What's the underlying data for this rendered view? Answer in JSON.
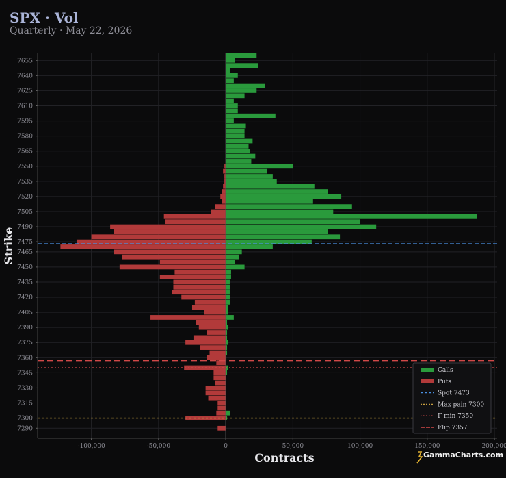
{
  "header": {
    "title": "SPX · Vol",
    "subtitle": "Quarterly · May 22, 2026"
  },
  "brand": "GammaCharts.com",
  "colors": {
    "calls": "#2a9a3c",
    "puts": "#b23a3a",
    "spot": "#4a90e2",
    "max_pain": "#c8a040",
    "gamma_min": "#d04848",
    "flip": "#d04848",
    "background": "#0b0b0c",
    "grid": "#222226"
  },
  "chart_data": {
    "type": "bar",
    "orientation": "horizontal",
    "xlabel": "Contracts",
    "ylabel": "Strike",
    "xlim": [
      -140000,
      202000
    ],
    "ylim": [
      7280,
      7662
    ],
    "x_ticks": [
      -100000,
      -50000,
      0,
      50000,
      100000,
      150000,
      200000
    ],
    "x_tick_labels": [
      "-100,000",
      "-50,000",
      "0",
      "50,000",
      "100,000",
      "150,000",
      "200,000"
    ],
    "y_ticks": [
      7290,
      7300,
      7315,
      7330,
      7345,
      7360,
      7375,
      7390,
      7405,
      7420,
      7435,
      7450,
      7465,
      7475,
      7490,
      7505,
      7520,
      7535,
      7550,
      7565,
      7580,
      7595,
      7610,
      7625,
      7640,
      7655
    ],
    "grid": true,
    "legend_position": "bottom-right",
    "series": [
      {
        "name": "Calls",
        "strikes": [
          7290,
          7300,
          7305,
          7310,
          7315,
          7320,
          7325,
          7330,
          7335,
          7340,
          7345,
          7350,
          7355,
          7360,
          7365,
          7370,
          7375,
          7380,
          7385,
          7390,
          7395,
          7400,
          7405,
          7410,
          7415,
          7420,
          7425,
          7430,
          7435,
          7440,
          7445,
          7450,
          7455,
          7460,
          7465,
          7470,
          7475,
          7480,
          7485,
          7490,
          7495,
          7500,
          7505,
          7510,
          7515,
          7520,
          7525,
          7530,
          7535,
          7540,
          7545,
          7550,
          7555,
          7560,
          7565,
          7570,
          7575,
          7580,
          7585,
          7590,
          7595,
          7600,
          7605,
          7610,
          7615,
          7620,
          7625,
          7630,
          7635,
          7640,
          7645,
          7650,
          7655,
          7660
        ],
        "values": [
          0,
          1000,
          3000,
          0,
          0,
          0,
          0,
          0,
          0,
          0,
          1000,
          2000,
          0,
          500,
          1000,
          1000,
          2000,
          1000,
          1000,
          2000,
          1000,
          6000,
          2000,
          2000,
          3000,
          3000,
          3000,
          3000,
          3000,
          4000,
          4000,
          14000,
          7000,
          10000,
          12000,
          35000,
          64000,
          85000,
          76000,
          112000,
          100000,
          187000,
          80000,
          94000,
          65000,
          86000,
          76000,
          66000,
          38000,
          35000,
          31000,
          50000,
          19000,
          22000,
          18000,
          17000,
          20000,
          14000,
          14000,
          15000,
          6000,
          37000,
          9000,
          9000,
          6000,
          14000,
          23000,
          29000,
          6000,
          9000,
          3000,
          24000,
          7000,
          23000
        ]
      },
      {
        "name": "Puts",
        "strikes": [
          7290,
          7300,
          7305,
          7310,
          7315,
          7320,
          7325,
          7330,
          7335,
          7340,
          7345,
          7350,
          7355,
          7360,
          7365,
          7370,
          7375,
          7380,
          7385,
          7390,
          7395,
          7400,
          7405,
          7410,
          7415,
          7420,
          7425,
          7430,
          7435,
          7440,
          7445,
          7450,
          7455,
          7460,
          7465,
          7470,
          7475,
          7480,
          7485,
          7490,
          7495,
          7500,
          7505,
          7510,
          7515,
          7520,
          7525,
          7530,
          7535,
          7540,
          7545,
          7550,
          7555,
          7560,
          7565,
          7570,
          7575,
          7580,
          7585,
          7590,
          7595,
          7600,
          7605,
          7610,
          7615,
          7620,
          7625,
          7630,
          7635,
          7640,
          7645,
          7650,
          7655,
          7660
        ],
        "values": [
          6000,
          30000,
          7000,
          6000,
          6000,
          13000,
          15000,
          15000,
          8000,
          9000,
          9000,
          31000,
          7000,
          14000,
          12000,
          19000,
          30000,
          24000,
          14000,
          20000,
          22000,
          56000,
          16000,
          25000,
          23000,
          33000,
          40000,
          39000,
          39000,
          49000,
          38000,
          79000,
          49000,
          77000,
          83000,
          123000,
          111000,
          100000,
          83000,
          86000,
          45000,
          46000,
          11000,
          8000,
          3000,
          4000,
          3000,
          2000,
          1000,
          1000,
          2000,
          1000,
          0,
          0,
          0,
          0,
          0,
          0,
          0,
          0,
          0,
          0,
          0,
          0,
          0,
          0,
          0,
          0,
          0,
          0,
          0,
          0,
          0,
          0
        ]
      }
    ],
    "reference_lines": [
      {
        "name": "Spot 7473",
        "value": 7473,
        "style": "dashed",
        "color": "#4a90e2"
      },
      {
        "name": "Max pain 7300",
        "value": 7300,
        "style": "dashed-fine",
        "color": "#c8a040"
      },
      {
        "name": "Γ min 7350",
        "value": 7350,
        "style": "dotted",
        "color": "#d04848"
      },
      {
        "name": "Flip 7357",
        "value": 7357,
        "style": "dashed-long",
        "color": "#d04848"
      }
    ],
    "legend": [
      "Calls",
      "Puts",
      "Spot 7473",
      "Max pain 7300",
      "Γ min 7350",
      "Flip 7357"
    ]
  }
}
